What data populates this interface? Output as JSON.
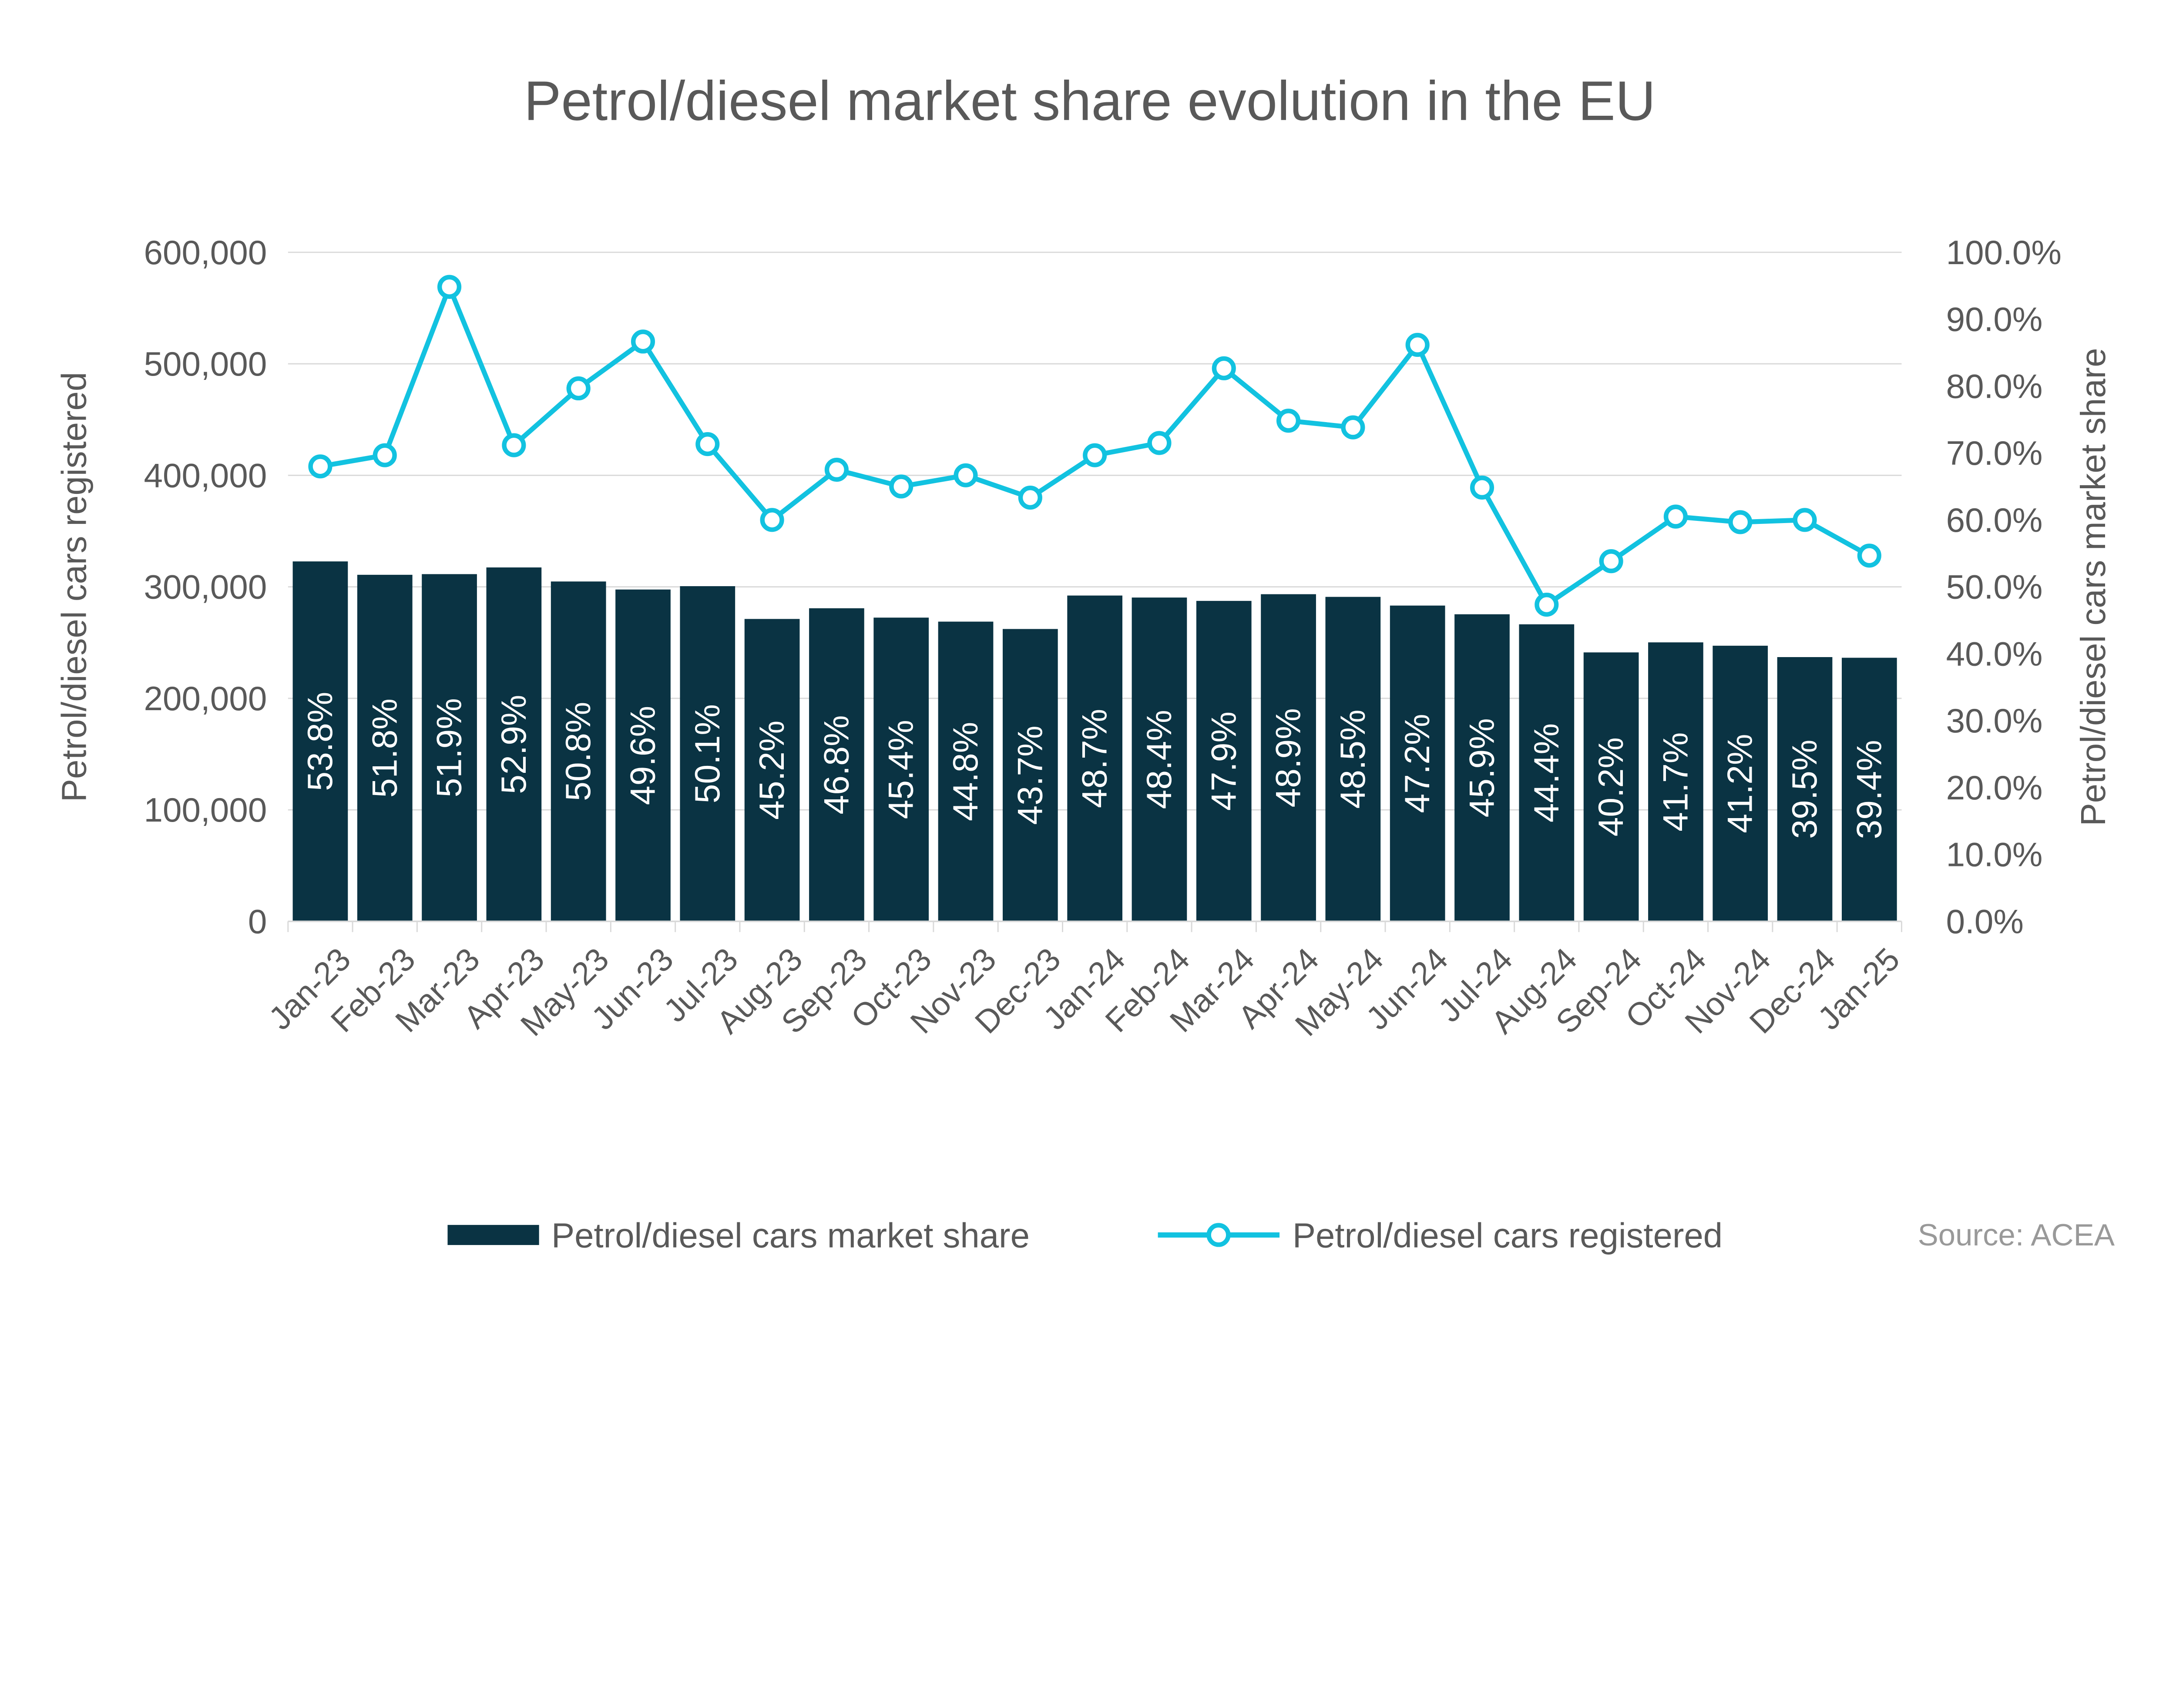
{
  "title": "Petrol/diesel market share evolution in the EU",
  "source": "Source: ACEA",
  "colors": {
    "bar": "#0a3343",
    "line": "#12c2e0",
    "grid": "#d9d9d9",
    "axis_text": "#595959",
    "bar_label": "#ffffff",
    "source_text": "#999999",
    "background": "#ffffff"
  },
  "left_axis": {
    "title": "Petrol/diesel cars registered",
    "min": 0,
    "max": 600000,
    "tick_step": 100000,
    "tick_labels": [
      "0",
      "100,000",
      "200,000",
      "300,000",
      "400,000",
      "500,000",
      "600,000"
    ]
  },
  "right_axis": {
    "title": "Petrol/diesel cars market share",
    "min": 0,
    "max": 100,
    "tick_step": 10,
    "tick_labels": [
      "0.0%",
      "10.0%",
      "20.0%",
      "30.0%",
      "40.0%",
      "50.0%",
      "60.0%",
      "70.0%",
      "80.0%",
      "90.0%",
      "100.0%"
    ]
  },
  "legend": [
    {
      "label": "Petrol/diesel cars market share",
      "type": "bar"
    },
    {
      "label": "Petrol/diesel cars registered",
      "type": "line"
    }
  ],
  "chart_data": {
    "type": "combo",
    "categories": [
      "Jan-23",
      "Feb-23",
      "Mar-23",
      "Apr-23",
      "May-23",
      "Jun-23",
      "Jul-23",
      "Aug-23",
      "Sep-23",
      "Oct-23",
      "Nov-23",
      "Dec-23",
      "Jan-24",
      "Feb-24",
      "Mar-24",
      "Apr-24",
      "May-24",
      "Jun-24",
      "Jul-24",
      "Aug-24",
      "Sep-24",
      "Oct-24",
      "Nov-24",
      "Dec-24",
      "Jan-25"
    ],
    "series": [
      {
        "name": "Petrol/diesel cars market share",
        "type": "bar",
        "axis": "right",
        "unit": "percent",
        "values": [
          53.8,
          51.8,
          51.9,
          52.9,
          50.8,
          49.6,
          50.1,
          45.2,
          46.8,
          45.4,
          44.8,
          43.7,
          48.7,
          48.4,
          47.9,
          48.9,
          48.5,
          47.2,
          45.9,
          44.4,
          40.2,
          41.7,
          41.2,
          39.5,
          39.4
        ]
      },
      {
        "name": "Petrol/diesel cars registered",
        "type": "line",
        "axis": "left",
        "unit": "cars",
        "values": [
          408000,
          418000,
          569000,
          427000,
          478000,
          520000,
          428000,
          360000,
          405000,
          390000,
          400000,
          380000,
          418000,
          429000,
          496000,
          449000,
          443000,
          517000,
          389000,
          284000,
          323000,
          363000,
          358000,
          360000,
          328000
        ]
      }
    ],
    "left_axis_range": [
      0,
      600000
    ],
    "right_axis_range": [
      0,
      100
    ],
    "grid": true,
    "legend_position": "bottom",
    "xlabel": "",
    "ylabel_left": "Petrol/diesel cars registered",
    "ylabel_right": "Petrol/diesel cars market share"
  }
}
